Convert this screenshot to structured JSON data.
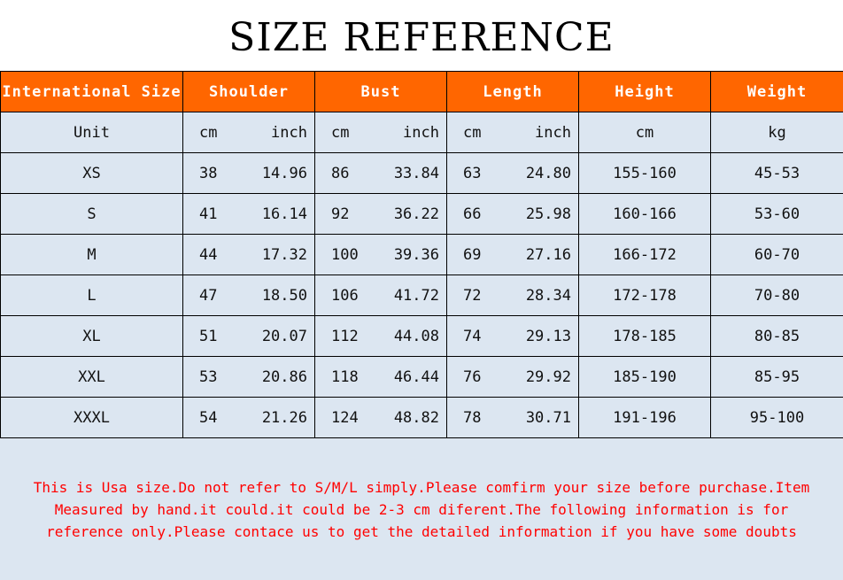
{
  "title": "SIZE REFERENCE",
  "headers": [
    "International Size",
    "Shoulder",
    "Bust",
    "Length",
    "Height",
    "Weight"
  ],
  "units": {
    "label": "Unit",
    "shoulder": [
      "cm",
      "inch"
    ],
    "bust": [
      "cm",
      "inch"
    ],
    "length": [
      "cm",
      "inch"
    ],
    "height": "cm",
    "weight": "kg"
  },
  "rows": [
    [
      "XS",
      "38",
      "14.96",
      "86",
      "33.84",
      "63",
      "24.80",
      "155-160",
      "45-53"
    ],
    [
      "S",
      "41",
      "16.14",
      "92",
      "36.22",
      "66",
      "25.98",
      "160-166",
      "53-60"
    ],
    [
      "M",
      "44",
      "17.32",
      "100",
      "39.36",
      "69",
      "27.16",
      "166-172",
      "60-70"
    ],
    [
      "L",
      "47",
      "18.50",
      "106",
      "41.72",
      "72",
      "28.34",
      "172-178",
      "70-80"
    ],
    [
      "XL",
      "51",
      "20.07",
      "112",
      "44.08",
      "74",
      "29.13",
      "178-185",
      "80-85"
    ],
    [
      "XXL",
      "53",
      "20.86",
      "118",
      "46.44",
      "76",
      "29.92",
      "185-190",
      "85-95"
    ],
    [
      "XXXL",
      "54",
      "21.26",
      "124",
      "48.82",
      "78",
      "30.71",
      "191-196",
      "95-100"
    ]
  ],
  "note_lines": [
    "This is Usa size.Do not refer to S/M/L simply.Please comfirm your size before purchase.Item",
    "Measured by hand.it could.it could be 2-3 cm diferent.The following information is for",
    "reference only.Please contace us to get the detailed information if you have some doubts"
  ],
  "colors": {
    "header_bg": "#FF6600",
    "body_bg": "#DCE6F1",
    "note": "#FF0000"
  }
}
